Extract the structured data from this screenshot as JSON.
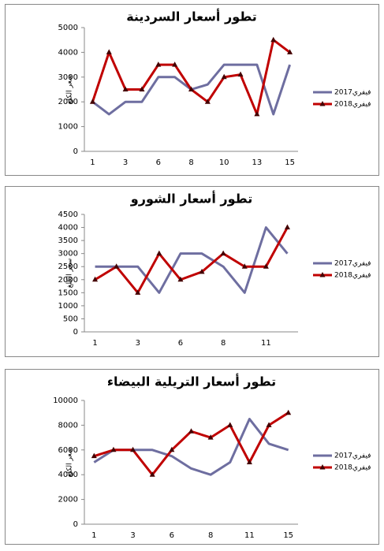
{
  "chart_data": [
    {
      "type": "line",
      "title": "تطور أسعار السردينة",
      "y_label": "سعر الكلغ",
      "categories": [
        1,
        null,
        3,
        null,
        6,
        null,
        8,
        null,
        10,
        null,
        13,
        null,
        15
      ],
      "series": [
        {
          "name": "فيفري2017",
          "color": "#6e6ea0",
          "values": [
            2000,
            1500,
            2000,
            2000,
            3000,
            3000,
            2500,
            2700,
            3500,
            3500,
            3500,
            1500,
            3500
          ]
        },
        {
          "name": "فيفري2018",
          "color": "#c00000",
          "marker": "triangle",
          "values": [
            2000,
            4000,
            2500,
            2500,
            3500,
            3500,
            2500,
            2000,
            3000,
            3100,
            1500,
            4500,
            4000
          ]
        }
      ],
      "ylim": [
        0,
        5000
      ],
      "yticks": [
        0,
        1000,
        2000,
        3000,
        4000,
        5000
      ],
      "grid": false,
      "legend": "right"
    },
    {
      "type": "line",
      "title": "تطور أسعار الشورو",
      "y_label": "سعر الكلغ",
      "categories": [
        1,
        null,
        3,
        null,
        6,
        null,
        8,
        null,
        11,
        null
      ],
      "series": [
        {
          "name": "فيفري2017",
          "color": "#6e6ea0",
          "values": [
            2500,
            2500,
            2500,
            1500,
            3000,
            3000,
            2500,
            1500,
            4000,
            3000
          ]
        },
        {
          "name": "فيفري2018",
          "color": "#c00000",
          "marker": "triangle",
          "values": [
            2000,
            2500,
            1500,
            3000,
            2000,
            2300,
            3000,
            2500,
            2500,
            4000
          ]
        }
      ],
      "ylim": [
        0,
        4500
      ],
      "yticks": [
        0,
        500,
        1000,
        1500,
        2000,
        2500,
        3000,
        3500,
        4000,
        4500
      ],
      "grid": false,
      "legend": "right"
    },
    {
      "type": "line",
      "title": "تطور أسعار التريلية البيضاء",
      "y_label": "سعر الكلغ",
      "categories": [
        1,
        null,
        3,
        null,
        6,
        null,
        8,
        null,
        11,
        null,
        15
      ],
      "series": [
        {
          "name": "فيفري2017",
          "color": "#6e6ea0",
          "values": [
            5000,
            6000,
            6000,
            6000,
            5500,
            4500,
            4000,
            5000,
            8500,
            6500,
            6000
          ]
        },
        {
          "name": "فيفري2018",
          "color": "#c00000",
          "marker": "triangle",
          "values": [
            5500,
            6000,
            6000,
            4000,
            6000,
            7500,
            7000,
            8000,
            5000,
            8000,
            9000
          ]
        }
      ],
      "ylim": [
        0,
        10000
      ],
      "yticks": [
        0,
        2000,
        4000,
        6000,
        8000,
        10000
      ],
      "grid": false,
      "legend": "right"
    }
  ]
}
